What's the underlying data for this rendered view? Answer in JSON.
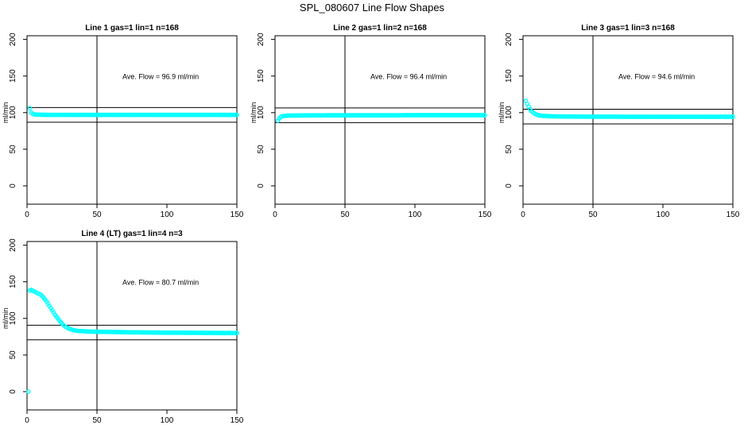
{
  "title": "SPL_080607  Line Flow Shapes",
  "chart_data": [
    {
      "type": "scatter",
      "title": "Line 1 gas=1 lin=1 n=168",
      "ylabel": "ml/min",
      "xlim": [
        0,
        150
      ],
      "ylim": [
        -25,
        205
      ],
      "xticks": [
        0,
        50,
        100,
        150
      ],
      "yticks": [
        0,
        50,
        100,
        150,
        200
      ],
      "annotation": "Ave. Flow =  96.9  ml/min",
      "hlines": [
        106.9,
        86.9
      ],
      "vline": 50,
      "color": "#00ffff",
      "series": [
        {
          "x": [
            2,
            3,
            4,
            5,
            6,
            8,
            10,
            15,
            20,
            30,
            50,
            75,
            100,
            125,
            150
          ],
          "y": [
            106,
            100,
            98.5,
            97.8,
            97.4,
            97.2,
            97.1,
            97.0,
            97.0,
            96.9,
            96.9,
            96.9,
            96.9,
            96.9,
            96.9
          ]
        }
      ]
    },
    {
      "type": "scatter",
      "title": "Line 2 gas=1 lin=2 n=168",
      "ylabel": "ml/min",
      "xlim": [
        0,
        150
      ],
      "ylim": [
        -25,
        205
      ],
      "xticks": [
        0,
        50,
        100,
        150
      ],
      "yticks": [
        0,
        50,
        100,
        150,
        200
      ],
      "annotation": "Ave. Flow =  96.4  ml/min",
      "hlines": [
        106.4,
        86.4
      ],
      "vline": 50,
      "color": "#00ffff",
      "series": [
        {
          "x": [
            2,
            3,
            4,
            5,
            6,
            8,
            10,
            15,
            20,
            30,
            50,
            75,
            100,
            125,
            150
          ],
          "y": [
            89,
            92,
            94,
            95,
            95.5,
            95.8,
            96.0,
            96.1,
            96.2,
            96.3,
            96.4,
            96.4,
            96.5,
            96.5,
            96.5
          ]
        }
      ]
    },
    {
      "type": "scatter",
      "title": "Line 3 gas=1 lin=3 n=168",
      "ylabel": "ml/min",
      "xlim": [
        0,
        150
      ],
      "ylim": [
        -25,
        205
      ],
      "xticks": [
        0,
        50,
        100,
        150
      ],
      "yticks": [
        0,
        50,
        100,
        150,
        200
      ],
      "annotation": "Ave. Flow =  94.6  ml/min",
      "hlines": [
        104.6,
        84.6
      ],
      "vline": 50,
      "color": "#00ffff",
      "series": [
        {
          "x": [
            2,
            3,
            4,
            5,
            6,
            8,
            10,
            12,
            15,
            20,
            30,
            50,
            75,
            100,
            125,
            150
          ],
          "y": [
            116,
            112,
            108,
            105,
            102,
            99,
            97,
            96,
            95.5,
            95,
            94.7,
            94.5,
            94.4,
            94.4,
            94.4,
            94.4
          ]
        }
      ]
    },
    {
      "type": "scatter",
      "title": "Line 4 (LT) gas=1 lin=4 n=3",
      "ylabel": "ml/min",
      "xlim": [
        0,
        150
      ],
      "ylim": [
        -25,
        205
      ],
      "xticks": [
        0,
        50,
        100,
        150
      ],
      "yticks": [
        0,
        50,
        100,
        150,
        200
      ],
      "annotation": "Ave. Flow =  80.7  ml/min",
      "hlines": [
        90.7,
        70.7
      ],
      "vline": 50,
      "color": "#00ffff",
      "series": [
        {
          "x": [
            1,
            2,
            3,
            4,
            6,
            8,
            10,
            12,
            14,
            16,
            18,
            20,
            22,
            24,
            26,
            28,
            30,
            33,
            36,
            40,
            45,
            50,
            60,
            75,
            100,
            125,
            150
          ],
          "y": [
            0,
            138,
            139,
            138,
            136,
            134,
            132,
            128,
            123,
            117,
            111,
            105,
            100,
            95,
            91,
            88,
            86,
            84,
            83,
            82.5,
            82,
            81.8,
            81.5,
            81,
            80.5,
            80.3,
            80
          ]
        }
      ]
    }
  ]
}
